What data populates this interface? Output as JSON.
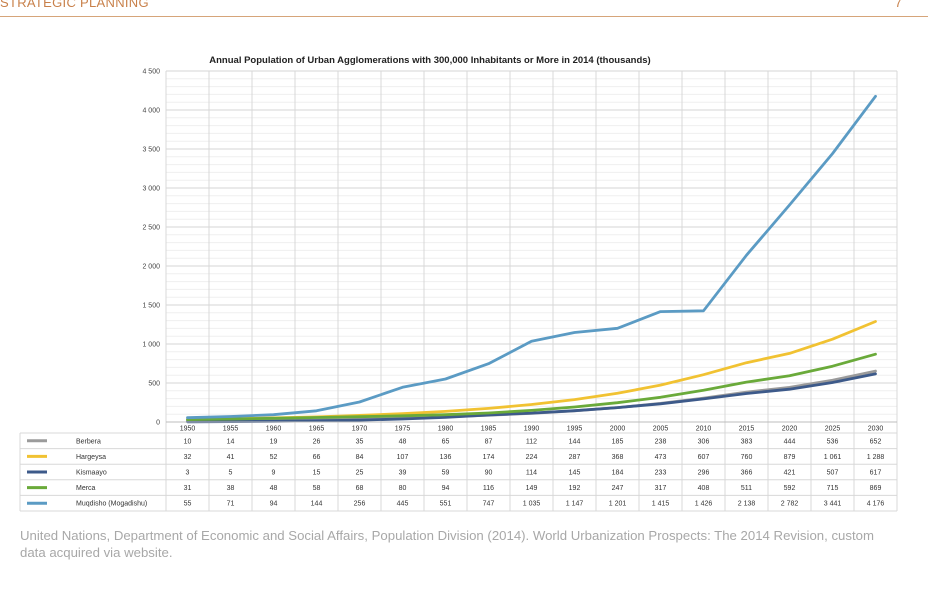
{
  "header": {
    "section": "STRATEGIC PLANNING",
    "page_number": "7"
  },
  "caption": "United Nations, Department of Economic and Social Affairs, Population Division (2014). World Urbanization Prospects: The 2014 Revision, custom data acquired via website.",
  "chart_data": {
    "type": "line",
    "title": "Annual Population of Urban Agglomerations with 300,000 Inhabitants or More in 2014 (thousands)",
    "xlabel": "",
    "ylabel": "",
    "ylim": [
      0,
      4500
    ],
    "yticks": [
      0,
      500,
      1000,
      1500,
      2000,
      2500,
      3000,
      3500,
      4000,
      4500
    ],
    "ytick_labels": [
      "0",
      "500",
      "1 000",
      "1 500",
      "2 000",
      "2 500",
      "3 000",
      "3 500",
      "4 000",
      "4 500"
    ],
    "categories": [
      "1950",
      "1955",
      "1960",
      "1965",
      "1970",
      "1975",
      "1980",
      "1985",
      "1990",
      "1995",
      "2000",
      "2005",
      "2010",
      "2015",
      "2020",
      "2025",
      "2030"
    ],
    "legend_position": "data-table",
    "series": [
      {
        "name": "Berbera",
        "color": "#9b9b9b",
        "values": [
          10,
          14,
          19,
          26,
          35,
          48,
          65,
          87,
          112,
          144,
          185,
          238,
          306,
          383,
          444,
          536,
          652
        ],
        "labels": [
          "10",
          "14",
          "19",
          "26",
          "35",
          "48",
          "65",
          "87",
          "112",
          "144",
          "185",
          "238",
          "306",
          "383",
          "444",
          "536",
          "652"
        ]
      },
      {
        "name": "Hargeysa",
        "color": "#f1c232",
        "values": [
          32,
          41,
          52,
          66,
          84,
          107,
          136,
          174,
          224,
          287,
          368,
          473,
          607,
          760,
          879,
          1061,
          1288
        ],
        "labels": [
          "32",
          "41",
          "52",
          "66",
          "84",
          "107",
          "136",
          "174",
          "224",
          "287",
          "368",
          "473",
          "607",
          "760",
          "879",
          "1 061",
          "1 288"
        ]
      },
      {
        "name": "Kismaayo",
        "color": "#3d5a8a",
        "values": [
          3,
          5,
          9,
          15,
          25,
          39,
          59,
          90,
          114,
          145,
          184,
          233,
          296,
          366,
          421,
          507,
          617
        ],
        "labels": [
          "3",
          "5",
          "9",
          "15",
          "25",
          "39",
          "59",
          "90",
          "114",
          "145",
          "184",
          "233",
          "296",
          "366",
          "421",
          "507",
          "617"
        ]
      },
      {
        "name": "Merca",
        "color": "#6aaa3a",
        "values": [
          31,
          38,
          48,
          58,
          68,
          80,
          94,
          116,
          149,
          192,
          247,
          317,
          408,
          511,
          592,
          715,
          869
        ],
        "labels": [
          "31",
          "38",
          "48",
          "58",
          "68",
          "80",
          "94",
          "116",
          "149",
          "192",
          "247",
          "317",
          "408",
          "511",
          "592",
          "715",
          "869"
        ]
      },
      {
        "name": "Muqdisho (Mogadishu)",
        "color": "#5b9bc4",
        "values": [
          55,
          71,
          94,
          144,
          256,
          445,
          551,
          747,
          1035,
          1147,
          1201,
          1415,
          1426,
          2138,
          2782,
          3441,
          4176
        ],
        "labels": [
          "55",
          "71",
          "94",
          "144",
          "256",
          "445",
          "551",
          "747",
          "1 035",
          "1 147",
          "1 201",
          "1 415",
          "1 426",
          "2 138",
          "2 782",
          "3 441",
          "4 176"
        ]
      }
    ]
  }
}
